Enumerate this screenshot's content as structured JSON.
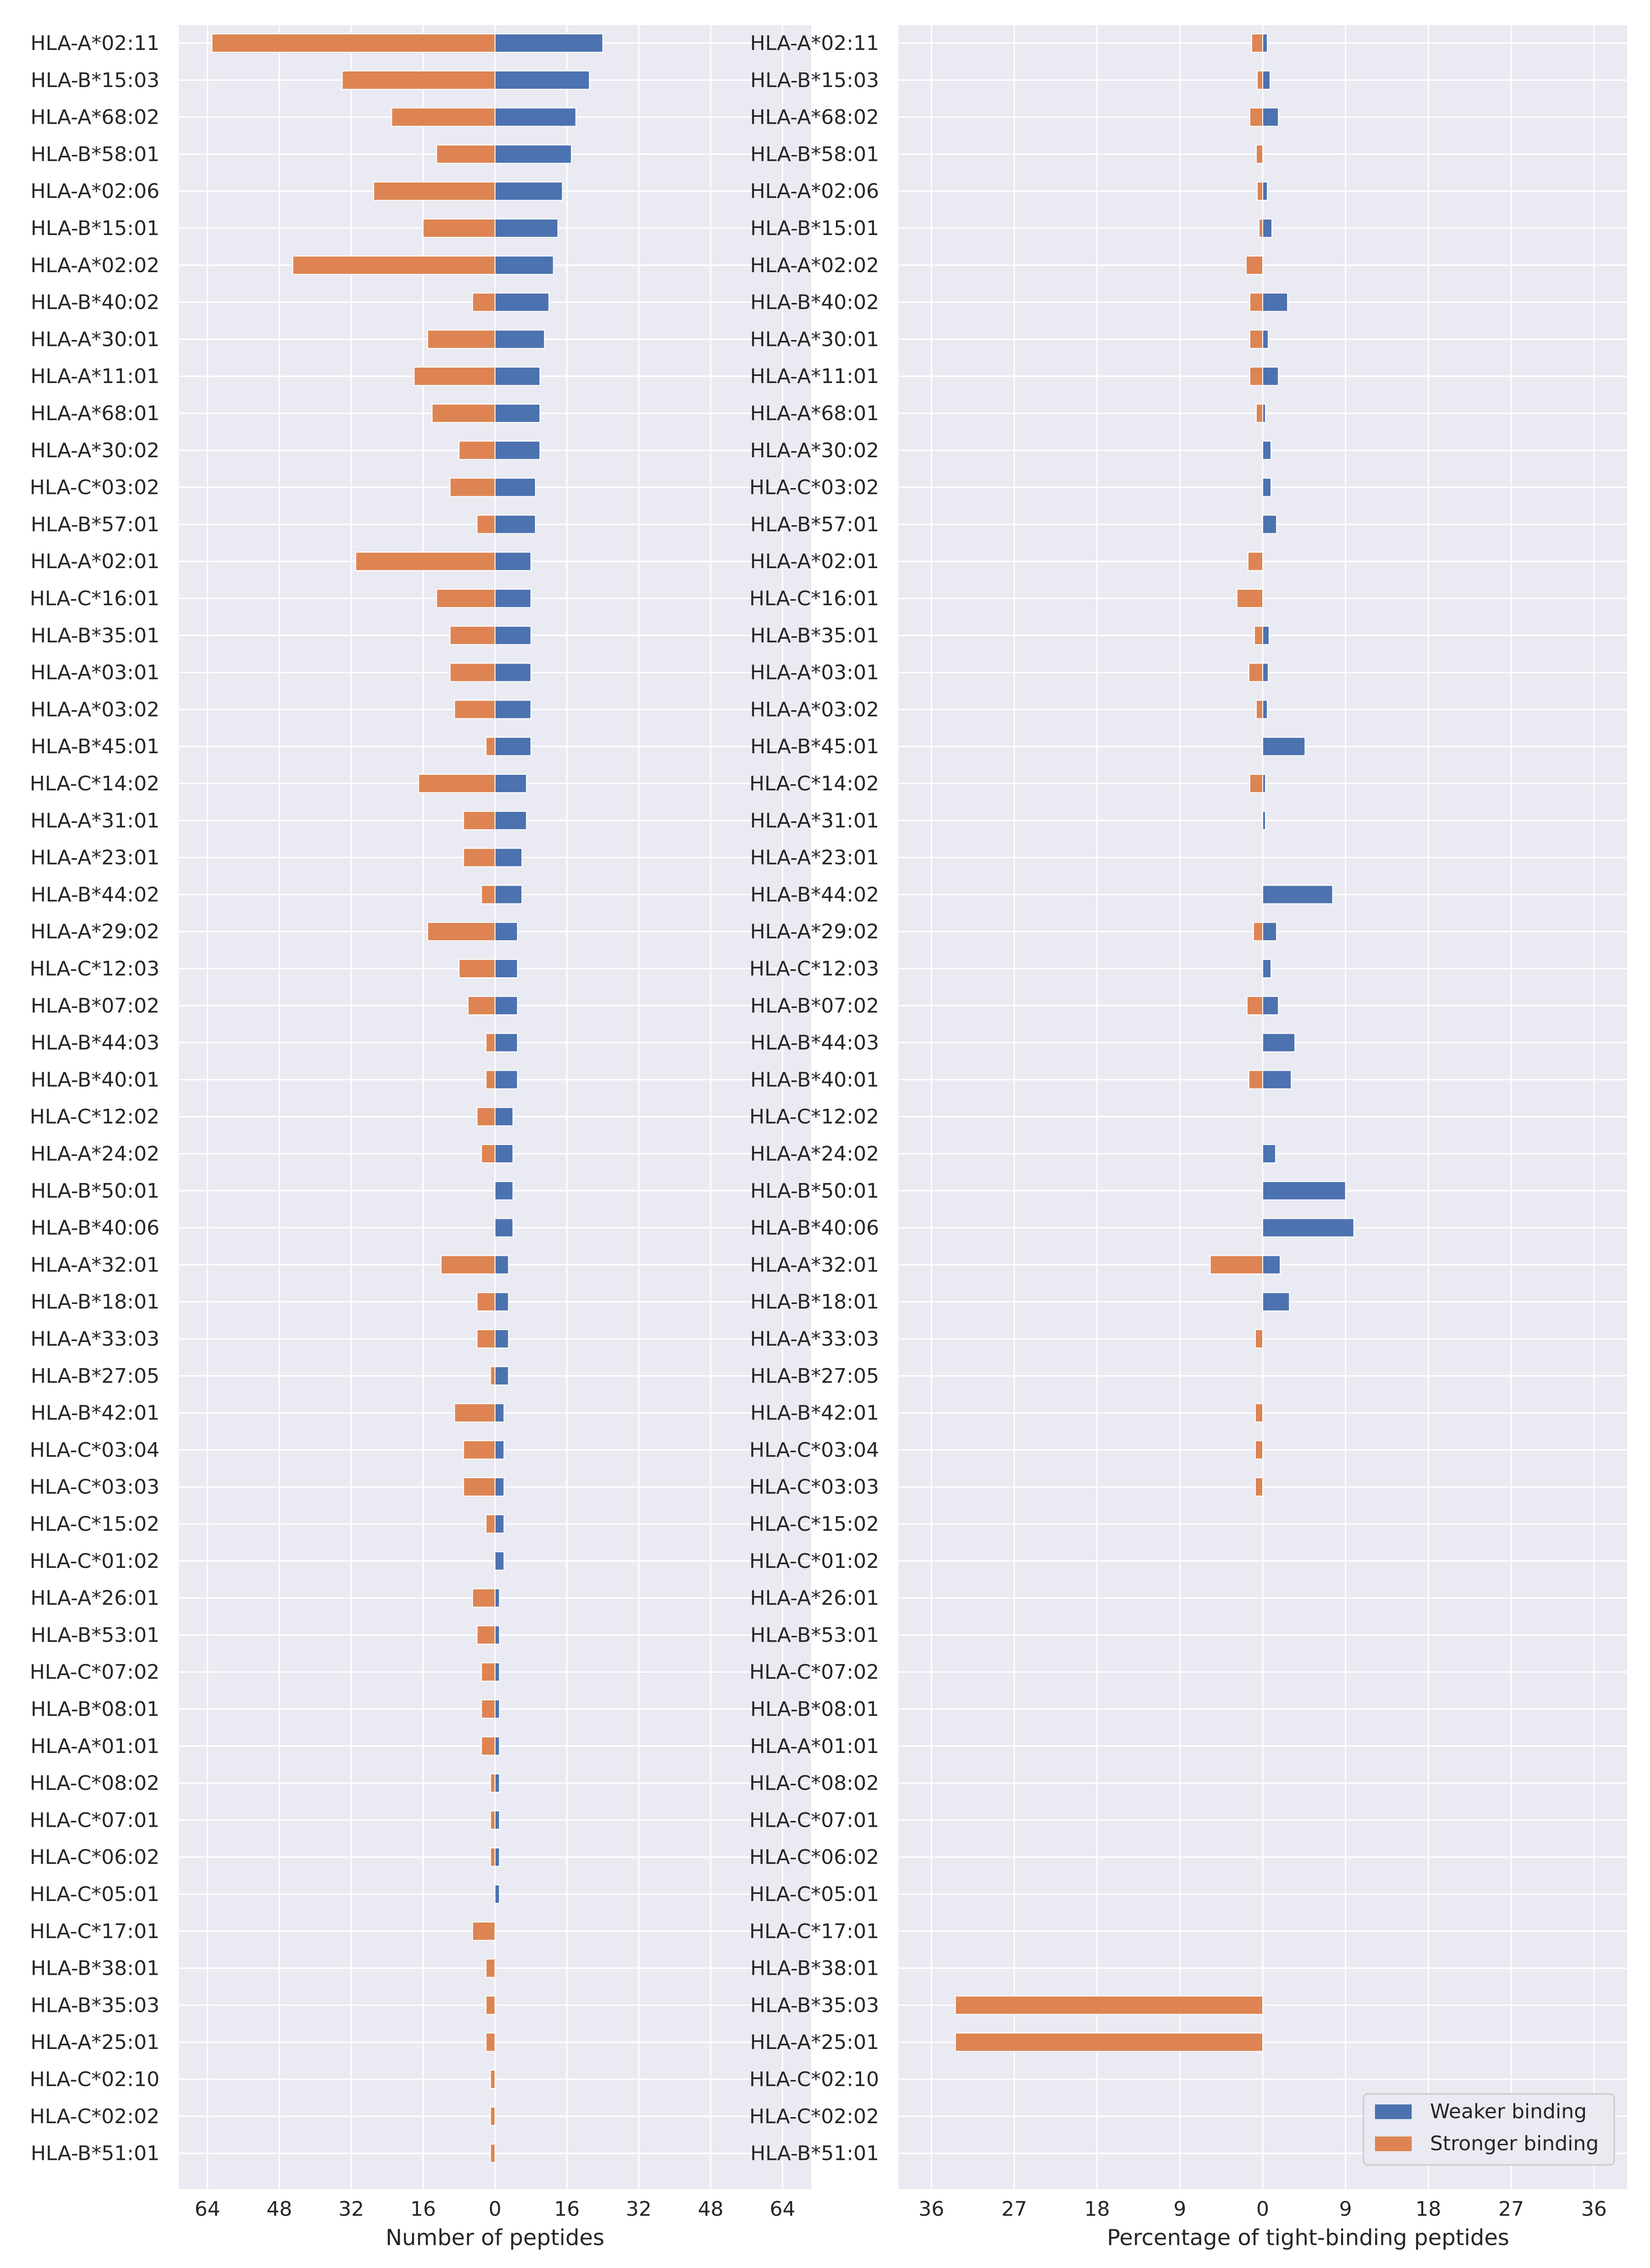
{
  "colors": {
    "weaker": "#4c72b0",
    "stronger": "#dd8452",
    "panel_bg": "#eaeaf2",
    "grid": "#ffffff"
  },
  "legend": {
    "placement": "lower-right of right panel",
    "entries": [
      "Weaker binding",
      "Stronger binding"
    ]
  },
  "chart_data": [
    {
      "type": "bar",
      "orientation": "horizontal, diverging",
      "xlabel": "Number of peptides",
      "xlim": [
        -64,
        64
      ],
      "xtick_labels": [
        "64",
        "48",
        "32",
        "16",
        "0",
        "16",
        "32",
        "48",
        "64"
      ],
      "categories": [
        "HLA-A*02:11",
        "HLA-B*15:03",
        "HLA-A*68:02",
        "HLA-B*58:01",
        "HLA-A*02:06",
        "HLA-B*15:01",
        "HLA-A*02:02",
        "HLA-B*40:02",
        "HLA-A*30:01",
        "HLA-A*11:01",
        "HLA-A*68:01",
        "HLA-A*30:02",
        "HLA-C*03:02",
        "HLA-B*57:01",
        "HLA-A*02:01",
        "HLA-C*16:01",
        "HLA-B*35:01",
        "HLA-A*03:01",
        "HLA-A*03:02",
        "HLA-B*45:01",
        "HLA-C*14:02",
        "HLA-A*31:01",
        "HLA-A*23:01",
        "HLA-B*44:02",
        "HLA-A*29:02",
        "HLA-C*12:03",
        "HLA-B*07:02",
        "HLA-B*44:03",
        "HLA-B*40:01",
        "HLA-C*12:02",
        "HLA-A*24:02",
        "HLA-B*50:01",
        "HLA-B*40:06",
        "HLA-A*32:01",
        "HLA-B*18:01",
        "HLA-A*33:03",
        "HLA-B*27:05",
        "HLA-B*42:01",
        "HLA-C*03:04",
        "HLA-C*03:03",
        "HLA-C*15:02",
        "HLA-C*01:02",
        "HLA-A*26:01",
        "HLA-B*53:01",
        "HLA-C*07:02",
        "HLA-B*08:01",
        "HLA-A*01:01",
        "HLA-C*08:02",
        "HLA-C*07:01",
        "HLA-C*06:02",
        "HLA-C*05:01",
        "HLA-C*17:01",
        "HLA-B*38:01",
        "HLA-B*35:03",
        "HLA-A*25:01",
        "HLA-C*02:10",
        "HLA-C*02:02",
        "HLA-B*51:01"
      ],
      "series": [
        {
          "name": "Weaker binding",
          "values": [
            24,
            21,
            18,
            17,
            15,
            14,
            13,
            12,
            11,
            10,
            10,
            10,
            9,
            9,
            8,
            8,
            8,
            8,
            8,
            8,
            7,
            7,
            6,
            6,
            5,
            5,
            5,
            5,
            5,
            4,
            4,
            4,
            4,
            3,
            3,
            3,
            3,
            2,
            2,
            2,
            2,
            2,
            1,
            1,
            1,
            1,
            1,
            1,
            1,
            1,
            1,
            0,
            0,
            0,
            0,
            0,
            0,
            0
          ]
        },
        {
          "name": "Stronger binding",
          "values": [
            63,
            34,
            23,
            13,
            27,
            16,
            45,
            5,
            15,
            18,
            14,
            8,
            10,
            4,
            31,
            13,
            10,
            10,
            9,
            2,
            17,
            7,
            7,
            3,
            15,
            8,
            6,
            2,
            2,
            4,
            3,
            0,
            0,
            12,
            4,
            4,
            1,
            9,
            7,
            7,
            2,
            0,
            5,
            4,
            3,
            3,
            3,
            1,
            1,
            1,
            0,
            5,
            2,
            2,
            2,
            1,
            1,
            1
          ]
        }
      ]
    },
    {
      "type": "bar",
      "orientation": "horizontal, diverging",
      "xlabel": "Percentage of tight-binding peptides",
      "xlim": [
        -36,
        36
      ],
      "xtick_labels": [
        "36",
        "27",
        "18",
        "9",
        "0",
        "9",
        "18",
        "27",
        "36"
      ],
      "categories": [
        "HLA-A*02:11",
        "HLA-B*15:03",
        "HLA-A*68:02",
        "HLA-B*58:01",
        "HLA-A*02:06",
        "HLA-B*15:01",
        "HLA-A*02:02",
        "HLA-B*40:02",
        "HLA-A*30:01",
        "HLA-A*11:01",
        "HLA-A*68:01",
        "HLA-A*30:02",
        "HLA-C*03:02",
        "HLA-B*57:01",
        "HLA-A*02:01",
        "HLA-C*16:01",
        "HLA-B*35:01",
        "HLA-A*03:01",
        "HLA-A*03:02",
        "HLA-B*45:01",
        "HLA-C*14:02",
        "HLA-A*31:01",
        "HLA-A*23:01",
        "HLA-B*44:02",
        "HLA-A*29:02",
        "HLA-C*12:03",
        "HLA-B*07:02",
        "HLA-B*44:03",
        "HLA-B*40:01",
        "HLA-C*12:02",
        "HLA-A*24:02",
        "HLA-B*50:01",
        "HLA-B*40:06",
        "HLA-A*32:01",
        "HLA-B*18:01",
        "HLA-A*33:03",
        "HLA-B*27:05",
        "HLA-B*42:01",
        "HLA-C*03:04",
        "HLA-C*03:03",
        "HLA-C*15:02",
        "HLA-C*01:02",
        "HLA-A*26:01",
        "HLA-B*53:01",
        "HLA-C*07:02",
        "HLA-B*08:01",
        "HLA-A*01:01",
        "HLA-C*08:02",
        "HLA-C*07:01",
        "HLA-C*06:02",
        "HLA-C*05:01",
        "HLA-C*17:01",
        "HLA-B*38:01",
        "HLA-B*35:03",
        "HLA-A*25:01",
        "HLA-C*02:10",
        "HLA-C*02:02",
        "HLA-B*51:01"
      ],
      "series": [
        {
          "name": "Weaker binding",
          "values": [
            0.5,
            0.8,
            1.7,
            0,
            0.5,
            1.0,
            0,
            2.7,
            0.6,
            1.7,
            0.3,
            0.9,
            0.9,
            1.5,
            0,
            0,
            0.7,
            0.6,
            0.5,
            4.6,
            0.3,
            0.3,
            0,
            7.6,
            1.5,
            0.9,
            1.7,
            3.5,
            3.1,
            0,
            1.4,
            9.0,
            9.9,
            1.9,
            2.9,
            0,
            0,
            0,
            0,
            0,
            0,
            0,
            0,
            0,
            0,
            0,
            0,
            0,
            0,
            0,
            0,
            0,
            0,
            0,
            0,
            0,
            0,
            0
          ]
        },
        {
          "name": "Stronger binding",
          "values": [
            1.2,
            0.6,
            1.4,
            0.7,
            0.6,
            0.4,
            1.8,
            1.4,
            1.4,
            1.4,
            0.7,
            0,
            0,
            0,
            1.6,
            2.8,
            0.9,
            1.5,
            0.7,
            0,
            1.4,
            0,
            0,
            0,
            1.0,
            0,
            1.7,
            0,
            1.5,
            0,
            0,
            0,
            0,
            5.7,
            0,
            0.8,
            0,
            0.8,
            0.8,
            0.8,
            0,
            0,
            0,
            0,
            0,
            0,
            0,
            0,
            0,
            0,
            0,
            0,
            0,
            33.4,
            33.4,
            0,
            0,
            0
          ]
        }
      ]
    }
  ]
}
